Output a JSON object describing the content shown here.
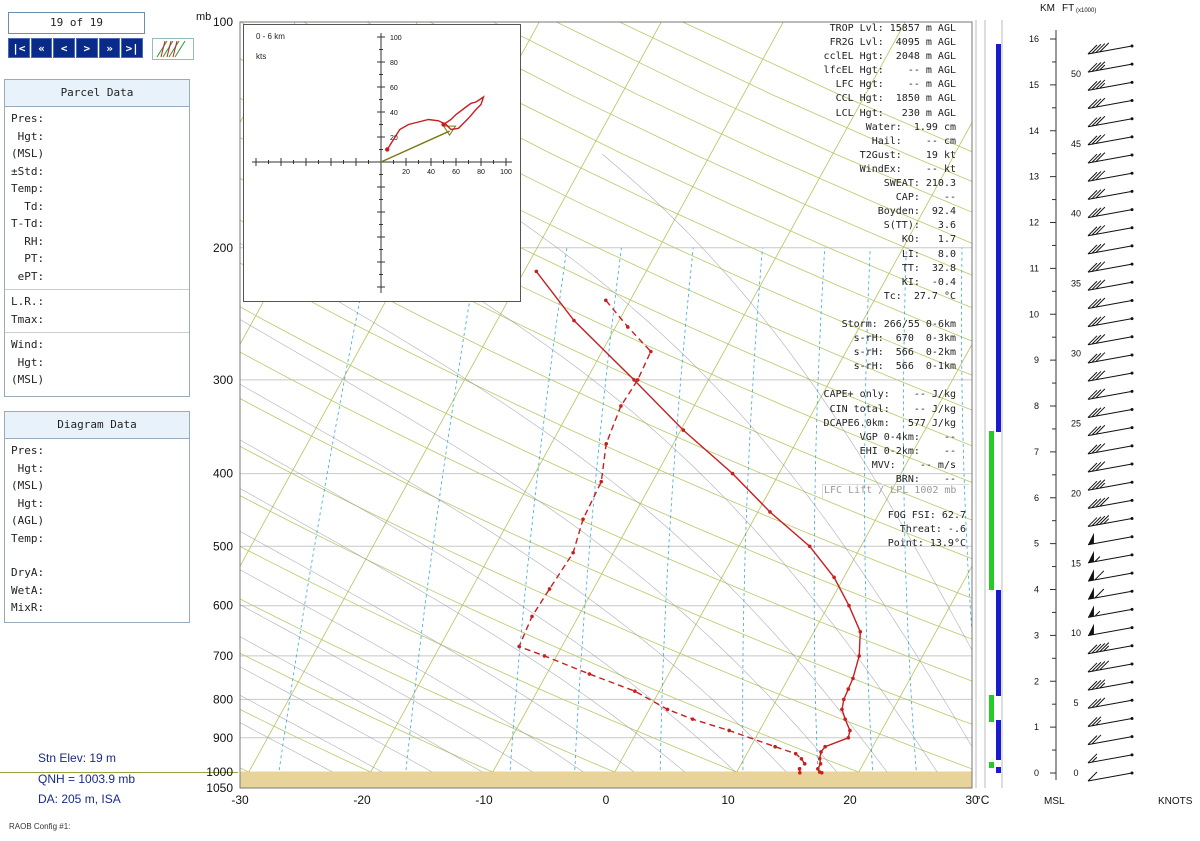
{
  "nav": {
    "counter": "19 of 19",
    "buttons": [
      "|<",
      "«",
      "<",
      ">",
      "»",
      ">|"
    ]
  },
  "parcel_panel": {
    "title": "Parcel Data",
    "rows": [
      "Pres:",
      " Hgt:",
      "(MSL)",
      "±Std:",
      "Temp:",
      "  Td:",
      "T-Td:",
      "  RH:",
      "  PT:",
      " ePT:"
    ],
    "rows2": [
      "L.R.:",
      "Tmax:"
    ],
    "rows3": [
      "Wind:",
      " Hgt:",
      "(MSL)"
    ]
  },
  "diagram_panel": {
    "title": "Diagram Data",
    "rows": [
      "Pres:",
      " Hgt:",
      "(MSL)",
      " Hgt:",
      "(AGL)",
      "Temp:"
    ],
    "rows2": [
      "DryA:",
      "WetA:",
      "MixR:"
    ]
  },
  "station": {
    "elev": "Stn Elev: 19 m",
    "qnh": "QNH = 1003.9 mb",
    "da": "DA: 205 m, ISA"
  },
  "config_label": "RAOB Config #1:",
  "indices": [
    "TROP Lvl: 15857 m AGL",
    "FR2G Lvl:  4095 m AGL",
    "cclEL Hgt:  2048 m AGL",
    "lfcEL Hgt:    -- m AGL",
    "LFC Hgt:    -- m AGL",
    "CCL Hgt:  1850 m AGL",
    "LCL Hgt:   230 m AGL",
    "Water:  1.99 cm",
    "Hail:    -- cm",
    "T2Gust:    19 kt",
    "WindEx:    -- kt",
    "SWEAT: 210.3",
    "CAP:    --",
    "Boyden:  92.4",
    "S(TT):   3.6",
    "KO:   1.7",
    "LI:   8.0",
    "TT:  32.8",
    "KI:  -0.4",
    "Tc:  27.7 °C",
    "",
    "Storm: 266/55 0-6km",
    "s-rH:  670  0-3km",
    "s-rH:  566  0-2km",
    "s-rH:  566  0-1km",
    "",
    "CAPE+ only:    -- J/kg",
    "CIN total:    -- J/kg",
    "DCAPE6.0km:   577 J/kg",
    "VGP 0-4km:    --",
    "EHI 0-2km:    --",
    "MVV:    -- m/s",
    "BRN:    --"
  ],
  "lfc_note": "LFC Lift / LPL 1002 mb",
  "fog": [
    "FOG FSI: 62.7",
    "Threat:  -.6",
    "Point: 13.9°C"
  ],
  "chart_data": [
    {
      "type": "line",
      "title": "",
      "xlabel": "°C",
      "ylabel": "mb",
      "x_ticks": [
        -30,
        -20,
        -10,
        0,
        10,
        20,
        30
      ],
      "y_ticks": [
        100,
        200,
        300,
        400,
        500,
        600,
        700,
        800,
        900,
        1000,
        1050
      ],
      "xlim": [
        -30,
        30
      ],
      "ylim": [
        1050,
        100
      ],
      "y_scale": "log",
      "skew": "skew-T",
      "series": [
        {
          "kind": "temperature",
          "color": "#c81e1e",
          "p": [
            1002,
            1000,
            990,
            975,
            960,
            940,
            925,
            900,
            880,
            850,
            825,
            800,
            775,
            750,
            700,
            650,
            600,
            550,
            500,
            450,
            400,
            350,
            300,
            250,
            215
          ],
          "t": [
            17.0,
            16.8,
            16.5,
            16.5,
            16.2,
            16.0,
            16.1,
            17.6,
            17.4,
            16.5,
            15.8,
            15.5,
            15.4,
            15.3,
            14.8,
            13.8,
            11.7,
            9.2,
            5.8,
            1.0,
            -3.8,
            -9.8,
            -16.1,
            -23.7,
            -29.0
          ]
        },
        {
          "kind": "dewpoint",
          "color": "#c81e1e",
          "dashed": true,
          "p": [
            1002,
            990,
            975,
            960,
            945,
            925,
            880,
            850,
            825,
            780,
            740,
            700,
            680,
            620,
            570,
            510,
            460,
            410,
            365,
            325,
            300,
            275,
            255,
            235
          ],
          "t": [
            15.2,
            15.0,
            15.2,
            14.7,
            14.0,
            12.0,
            7.5,
            4.0,
            1.5,
            -2.0,
            -6.5,
            -11.0,
            -13.5,
            -13.8,
            -13.6,
            -13.3,
            -14.0,
            -14.2,
            -15.5,
            -16.0,
            -15.8,
            -16.0,
            -19.0,
            -22.0
          ]
        }
      ]
    },
    {
      "type": "line",
      "title": "0 - 6 km",
      "units": "kts",
      "x_ticks": [
        20,
        40,
        60,
        80,
        100
      ],
      "y_ticks": [
        20,
        40,
        60,
        80,
        100
      ],
      "xlim": [
        -100,
        100
      ],
      "ylim": [
        -100,
        100
      ],
      "series": [
        {
          "kind": "hodograph",
          "color": "#c81e1e",
          "x": [
            5,
            10,
            15,
            22,
            30,
            38,
            46,
            52,
            56,
            62,
            70,
            76,
            80,
            82,
            79,
            76,
            72,
            68,
            64,
            60,
            56,
            50
          ],
          "y": [
            10,
            18,
            26,
            30,
            32,
            34,
            33,
            30,
            26,
            27,
            35,
            42,
            46,
            52,
            50,
            48,
            47,
            44,
            41,
            38,
            34,
            30
          ]
        }
      ],
      "storm_vector": {
        "direction": 266,
        "speed": 55
      }
    },
    {
      "type": "bar",
      "title": "",
      "km_ticks": [
        0,
        1,
        2,
        3,
        4,
        5,
        6,
        7,
        8,
        9,
        10,
        11,
        12,
        13,
        14,
        15,
        16
      ],
      "ft_ticks": [
        0,
        5,
        10,
        15,
        20,
        25,
        30,
        35,
        40,
        45,
        50
      ],
      "km_label": "KM",
      "ft_label": "FT",
      "ft_units": "(x1000)",
      "bottom_left": "MSL",
      "bottom_right": "KNOTS",
      "wind_speeds_kt": [
        10,
        15,
        20,
        25,
        30,
        35,
        40,
        45,
        50,
        55,
        60,
        60,
        55,
        50,
        45,
        40,
        35,
        30,
        30,
        30,
        30,
        30,
        30,
        30,
        30,
        30,
        30,
        30,
        30,
        30,
        30,
        30,
        30,
        30,
        30,
        30,
        30,
        30,
        35,
        35,
        40
      ]
    }
  ],
  "colors": {
    "temperature": "#c81e1e",
    "isotherm": "#b8c25a",
    "dry_adiabat": "#b9c968",
    "moist_adiabat": "#8a8fa0",
    "mixing_ratio": "#3aa8d8",
    "ground": "#e8d49a",
    "cloud_blue": "#1a1ad0",
    "cloud_green": "#22cc22",
    "nav_button": "#0a2a8a"
  }
}
